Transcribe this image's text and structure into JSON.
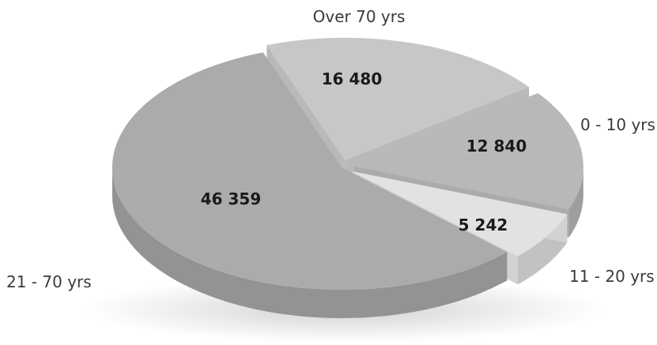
{
  "chart_data": {
    "type": "pie",
    "style": "3d-exploded",
    "slices": [
      {
        "label": "Over 70 yrs",
        "value": 16480,
        "value_label": "16 480",
        "color": "#c7c7c7"
      },
      {
        "label": "0 - 10 yrs",
        "value": 12840,
        "value_label": "12 840",
        "color": "#b8b8b8"
      },
      {
        "label": "11 - 20 yrs",
        "value": 5242,
        "value_label": "5 242",
        "color": "#e2e2e2"
      },
      {
        "label": "21 - 70 yrs",
        "value": 46359,
        "value_label": "46 359",
        "color": "#ababab"
      }
    ],
    "legend": "none"
  }
}
